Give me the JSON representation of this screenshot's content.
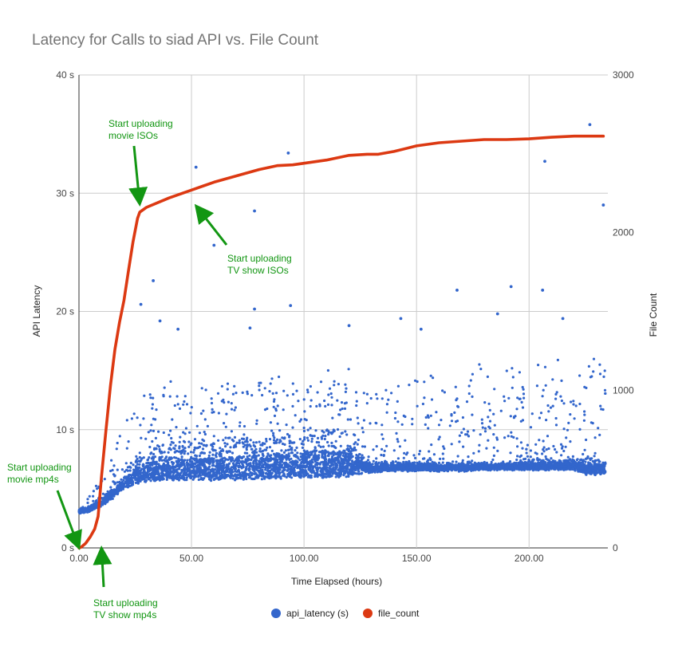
{
  "chart_data": {
    "type": "scatter",
    "title": "Latency for Calls to siad API vs. File Count",
    "xlabel": "Time Elapsed (hours)",
    "ylabel_left": "API Latency",
    "ylabel_right": "File Count",
    "xlim": [
      0,
      235
    ],
    "ylim_left": [
      0,
      40
    ],
    "ylim_right": [
      0,
      3000
    ],
    "x_ticks": [
      0,
      50,
      100,
      150,
      200
    ],
    "x_tick_labels": [
      "0.00",
      "50.00",
      "100.00",
      "150.00",
      "200.00"
    ],
    "y_left_ticks": [
      0,
      10,
      20,
      30,
      40
    ],
    "y_left_tick_labels": [
      "0 s",
      "10 s",
      "20 s",
      "30 s",
      "40 s"
    ],
    "y_right_ticks": [
      0,
      1000,
      2000,
      3000
    ],
    "y_right_tick_labels": [
      "0",
      "1000",
      "2000",
      "3000"
    ],
    "grid": true,
    "legend_position": "bottom",
    "series": [
      {
        "name": "api_latency (s)",
        "axis": "left",
        "color": "#3366cc",
        "kind": "scatter",
        "profile_x": [
          0,
          5,
          10,
          15,
          20,
          25,
          30,
          40,
          50,
          60,
          70,
          80,
          90,
          100,
          110,
          120,
          125,
          130,
          140,
          150,
          160,
          170,
          180,
          190,
          200,
          210,
          220,
          225,
          234
        ],
        "profile_base": [
          3.0,
          3.2,
          3.6,
          4.3,
          5.0,
          5.5,
          5.7,
          5.8,
          5.8,
          5.8,
          5.8,
          5.9,
          6.0,
          6.0,
          6.0,
          6.1,
          6.4,
          6.5,
          6.6,
          6.6,
          6.6,
          6.6,
          6.7,
          6.7,
          6.7,
          6.7,
          6.7,
          6.3,
          6.3
        ],
        "profile_dense_top": [
          3.2,
          3.6,
          4.2,
          5.2,
          6.5,
          7.5,
          8.5,
          9.0,
          9.0,
          9.0,
          9.2,
          9.3,
          9.5,
          9.8,
          10.0,
          10.0,
          8.0,
          7.2,
          7.2,
          7.2,
          7.2,
          7.2,
          7.2,
          7.2,
          7.5,
          7.5,
          7.5,
          7.5,
          7.5
        ],
        "profile_spread_top": [
          3.5,
          4.5,
          6.0,
          8.0,
          10.5,
          12.0,
          13.5,
          14.0,
          14.0,
          14.0,
          14.0,
          14.5,
          14.5,
          14.5,
          15.0,
          15.0,
          14.0,
          14.0,
          14.0,
          14.5,
          15.0,
          15.0,
          15.5,
          15.5,
          15.5,
          16.0,
          16.5,
          16.0,
          16.0
        ],
        "point_count": 6000,
        "outliers": [
          [
            27.5,
            20.6
          ],
          [
            33,
            22.6
          ],
          [
            36,
            19.2
          ],
          [
            44,
            18.5
          ],
          [
            52,
            32.2
          ],
          [
            60,
            25.6
          ],
          [
            76,
            18.6
          ],
          [
            78,
            28.5
          ],
          [
            78,
            20.2
          ],
          [
            93,
            33.4
          ],
          [
            94,
            20.5
          ],
          [
            120,
            18.8
          ],
          [
            143,
            19.4
          ],
          [
            152,
            18.5
          ],
          [
            168,
            21.8
          ],
          [
            186,
            19.8
          ],
          [
            192,
            22.1
          ],
          [
            206,
            21.8
          ],
          [
            207,
            32.7
          ],
          [
            215,
            19.4
          ],
          [
            227,
            35.8
          ],
          [
            233,
            29.0
          ]
        ]
      },
      {
        "name": "file_count",
        "axis": "right",
        "color": "#dc3912",
        "kind": "line",
        "x": [
          0,
          1,
          3,
          5,
          7,
          8.5,
          10,
          12,
          14,
          16,
          18,
          20,
          22,
          24,
          26,
          27,
          28,
          30,
          40,
          50,
          60,
          70,
          80,
          88,
          95,
          100,
          105,
          110,
          120,
          128,
          133,
          140,
          150,
          160,
          170,
          180,
          190,
          200,
          210,
          220,
          230,
          233
        ],
        "y": [
          0,
          5,
          30,
          70,
          120,
          200,
          450,
          750,
          1030,
          1260,
          1430,
          1570,
          1760,
          1940,
          2090,
          2130,
          2140,
          2160,
          2220,
          2270,
          2320,
          2360,
          2400,
          2425,
          2430,
          2440,
          2450,
          2460,
          2490,
          2497,
          2497,
          2515,
          2550,
          2570,
          2580,
          2590,
          2590,
          2595,
          2605,
          2612,
          2612,
          2612
        ]
      }
    ],
    "annotations": [
      {
        "lines": [
          "Start uploading",
          "movie mp4s"
        ],
        "points_to": [
          0,
          0
        ]
      },
      {
        "lines": [
          "Start uploading",
          "TV show mp4s"
        ],
        "points_to": [
          10,
          0
        ]
      },
      {
        "lines": [
          "Start uploading",
          "movie ISOs"
        ],
        "points_to": [
          27,
          2180
        ]
      },
      {
        "lines": [
          "Start uploading",
          "TV show ISOs"
        ],
        "points_to": [
          52,
          2170
        ]
      }
    ],
    "annotation_color": "#129612"
  }
}
